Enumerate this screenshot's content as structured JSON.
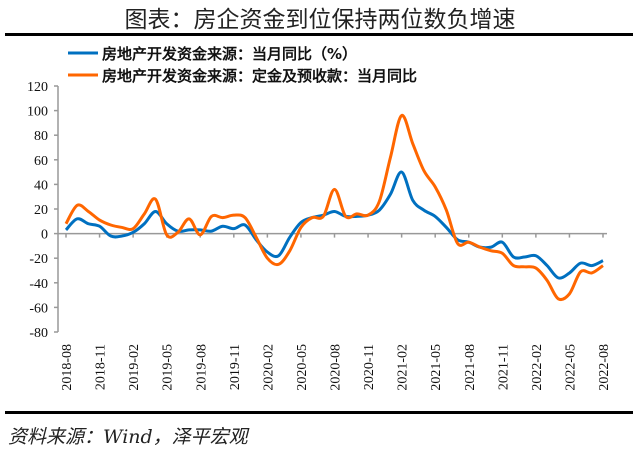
{
  "title": "图表：房企资金到位保持两位数负增速",
  "source": "资料来源：Wind，泽平宏观",
  "chart_data": {
    "type": "line",
    "title": "图表：房企资金到位保持两位数负增速",
    "xlabel": "",
    "ylabel": "",
    "ylim": [
      -80,
      120
    ],
    "yticks": [
      -80,
      -60,
      -40,
      -20,
      0,
      20,
      40,
      60,
      80,
      100,
      120
    ],
    "grid": false,
    "legend_position": "top-left",
    "x_tick_labels": [
      "2018-08",
      "2018-11",
      "2019-02",
      "2019-05",
      "2019-08",
      "2019-11",
      "2020-02",
      "2020-05",
      "2020-08",
      "2020-11",
      "2021-02",
      "2021-05",
      "2021-08",
      "2021-11",
      "2022-02",
      "2022-05",
      "2022-08"
    ],
    "x_start": "2018-08",
    "x_end": "2022-08",
    "frequency": "monthly",
    "series": [
      {
        "name": "房地产开发资金来源：当月同比（%）",
        "color": "#0070C0",
        "values": [
          3,
          12,
          8,
          6,
          -2,
          -2,
          1,
          8,
          18,
          8,
          2,
          3,
          3,
          2,
          6,
          4,
          7,
          -5,
          -15,
          -18,
          -3,
          9,
          13,
          15,
          18,
          14,
          14,
          15,
          19,
          32,
          50,
          27,
          19,
          14,
          5,
          -5,
          -7,
          -11,
          -11,
          -7,
          -19,
          -19,
          -18,
          -26,
          -36,
          -32,
          -24,
          -26,
          -22
        ]
      },
      {
        "name": "房地产开发资金来源：定金及预收款：当月同比",
        "color": "#FF6600",
        "values": [
          8,
          23,
          18,
          11,
          7,
          5,
          4,
          16,
          28,
          -1,
          1,
          12,
          -1,
          14,
          13,
          15,
          13,
          -3,
          -20,
          -25,
          -14,
          5,
          13,
          14,
          36,
          14,
          16,
          15,
          26,
          62,
          96,
          73,
          51,
          38,
          19,
          -8,
          -7,
          -11,
          -14,
          -16,
          -26,
          -27,
          -28,
          -38,
          -53,
          -49,
          -31,
          -32,
          -26
        ]
      }
    ]
  }
}
